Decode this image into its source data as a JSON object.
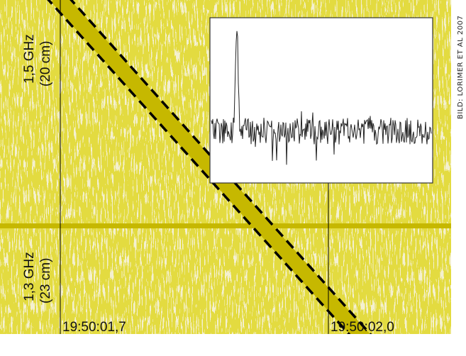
{
  "figure": {
    "bands": [
      {
        "frequency": "1,5 GHz",
        "wavelength": "(20 cm)"
      },
      {
        "frequency": "1,3 GHz",
        "wavelength": "(23 cm)"
      }
    ],
    "times": [
      "19:50:01,7",
      "19:50:02,0"
    ],
    "credit": "BILD: LORIMER ET AL 2007"
  }
}
